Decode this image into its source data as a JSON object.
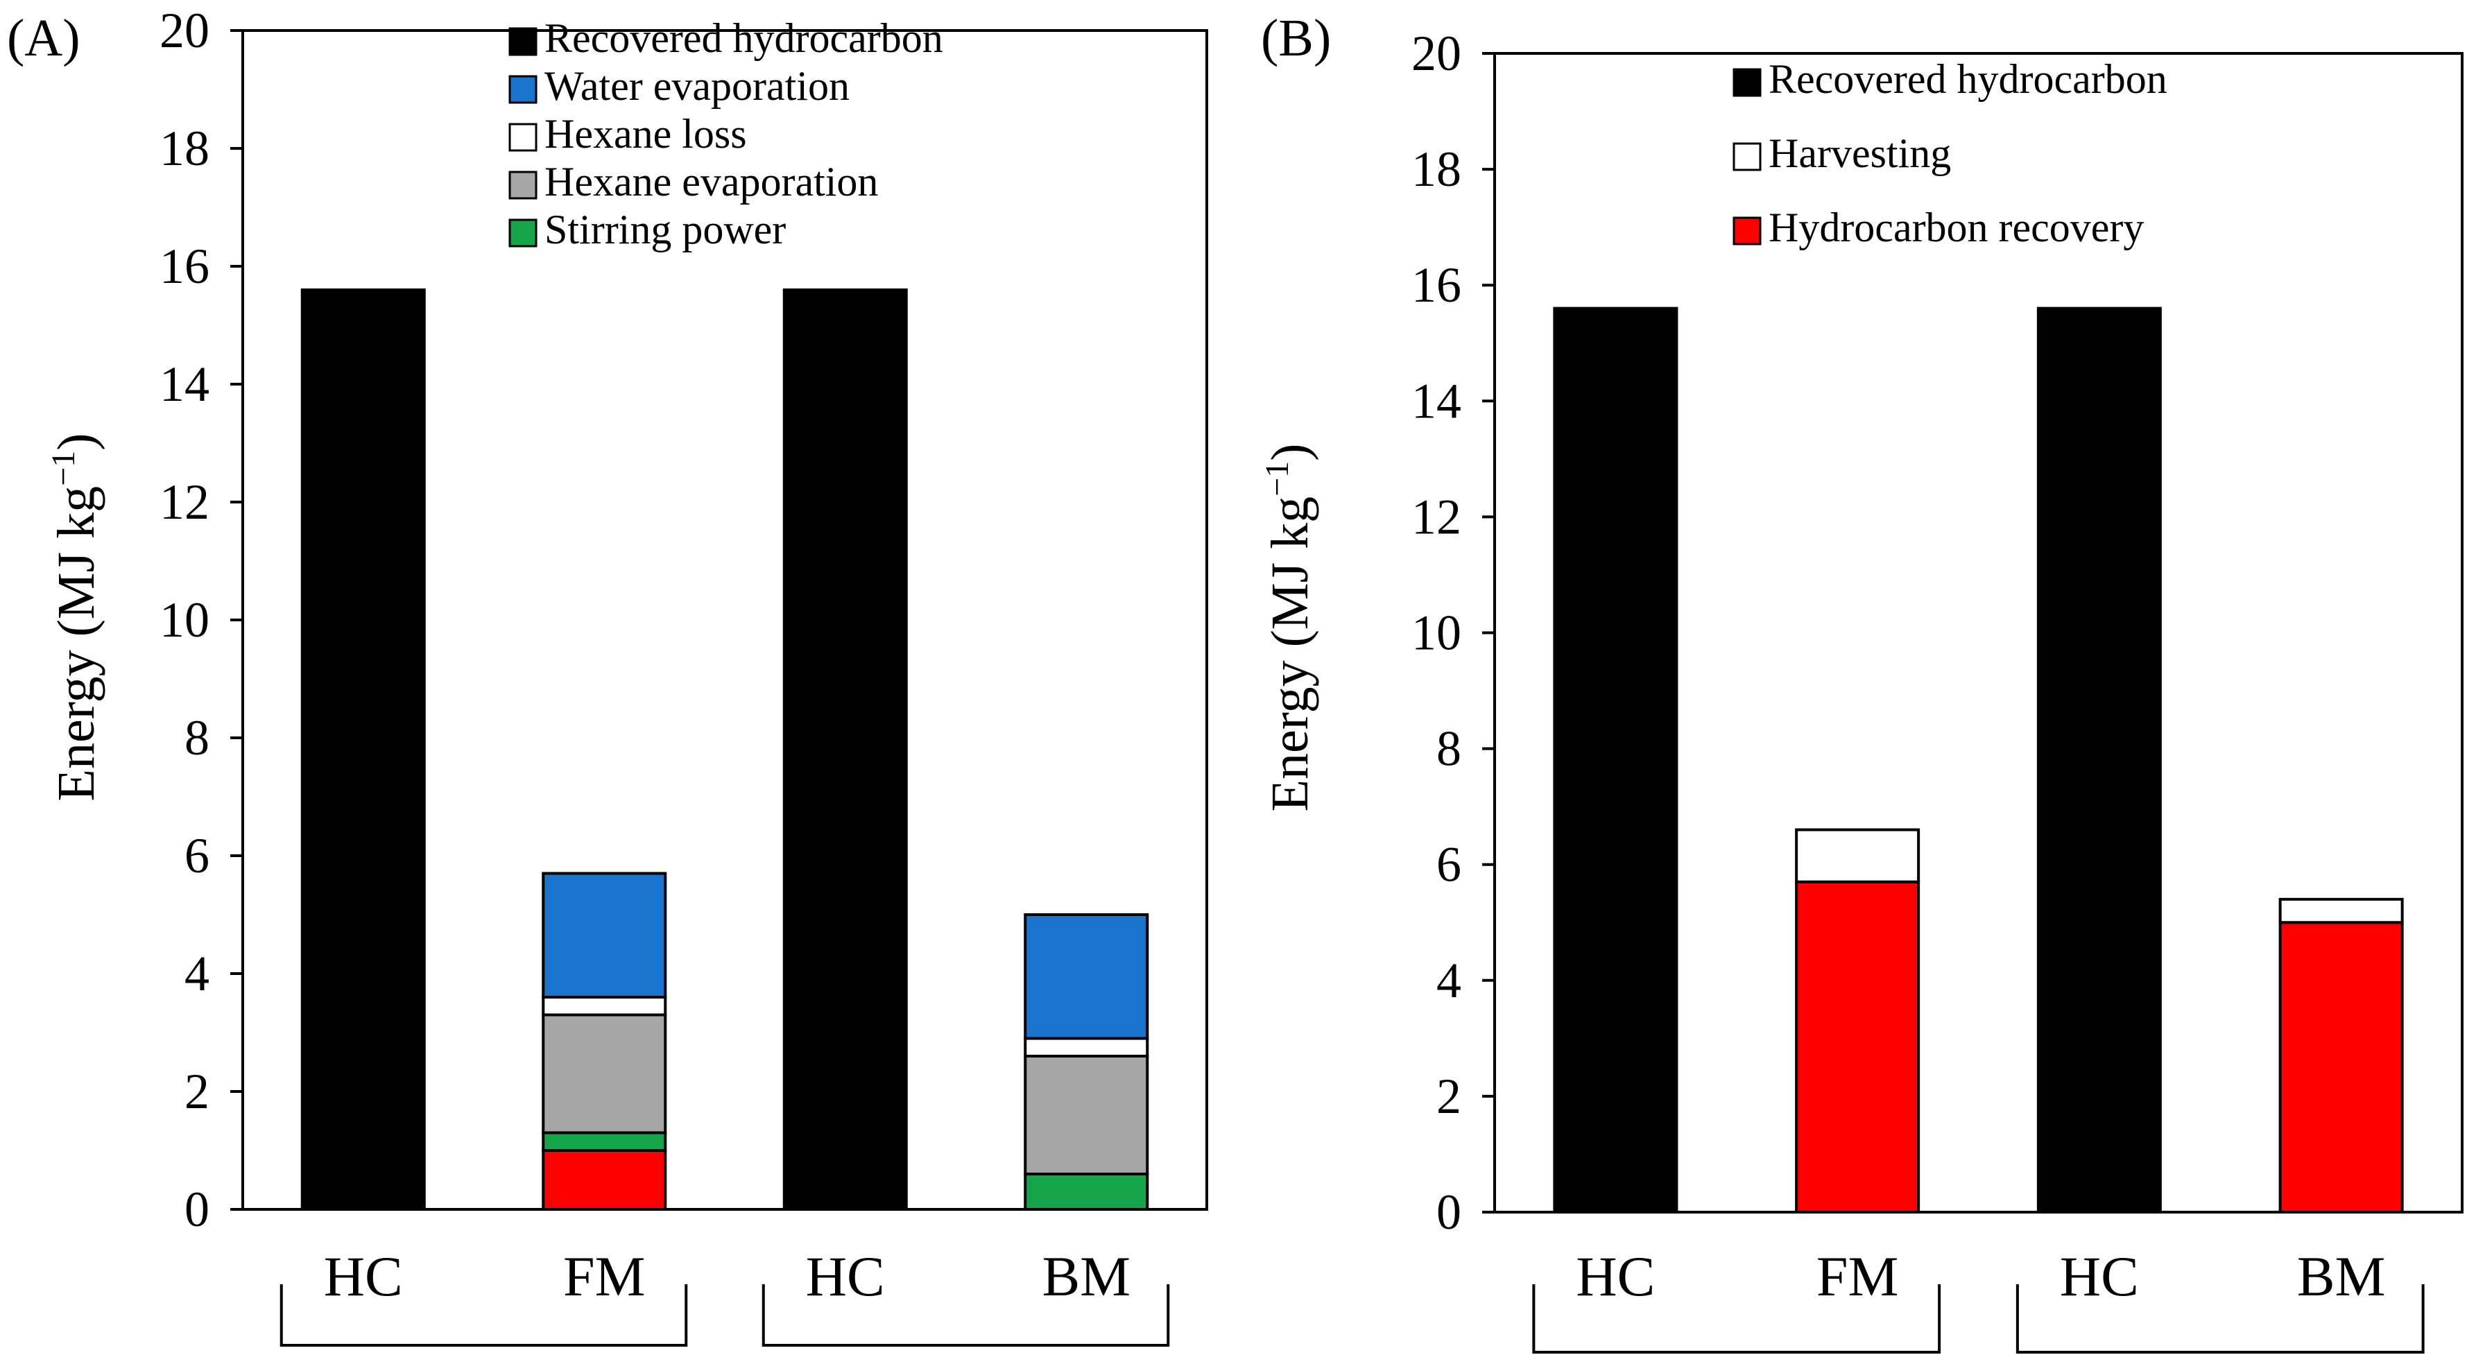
{
  "colors": {
    "recovered_hydrocarbon": "#000000",
    "water_evaporation": "#1874CD",
    "hexane_loss": "#FFFFFF",
    "hexane_evaporation": "#A6A6A6",
    "stirring_power": "#14A54A",
    "harvesting": "#FFFFFF",
    "hydrocarbon_recovery": "#FF0000"
  },
  "chart_data": [
    {
      "panel": "(A)",
      "type": "bar",
      "stacked": true,
      "categories": [
        "HC",
        "FM",
        "HC",
        "BM"
      ],
      "ylabel": "Energy (MJ kg⁻¹)",
      "ylabel_main": "Energy (MJ kg",
      "ylabel_sup": "−1",
      "ylabel_close": ")",
      "ylim": [
        0,
        20
      ],
      "yticks": [
        0,
        2,
        4,
        6,
        8,
        10,
        12,
        14,
        16,
        18,
        20
      ],
      "legend_position": "top-center",
      "series": [
        {
          "key": "hydrocarbon_recovery",
          "name": "Hydrocarbon recovery",
          "in_legend": false,
          "values": [
            0,
            1.0,
            0,
            0
          ]
        },
        {
          "key": "stirring_power",
          "name": "Stirring power",
          "in_legend": true,
          "values": [
            0,
            0.3,
            0,
            0.6
          ]
        },
        {
          "key": "hexane_evaporation",
          "name": "Hexane evaporation",
          "in_legend": true,
          "values": [
            0,
            2.0,
            0,
            2.0
          ]
        },
        {
          "key": "hexane_loss",
          "name": "Hexane loss",
          "in_legend": true,
          "values": [
            0,
            0.3,
            0,
            0.3
          ]
        },
        {
          "key": "water_evaporation",
          "name": "Water evaporation",
          "in_legend": true,
          "values": [
            0,
            2.1,
            0,
            2.1
          ]
        },
        {
          "key": "recovered_hydrocarbon",
          "name": "Recovered hydrocarbon",
          "in_legend": true,
          "values": [
            15.6,
            0,
            15.6,
            0
          ]
        }
      ],
      "legend_order": [
        "recovered_hydrocarbon",
        "water_evaporation",
        "hexane_loss",
        "hexane_evaporation",
        "stirring_power"
      ],
      "groups": [
        [
          0,
          1
        ],
        [
          2,
          3
        ]
      ]
    },
    {
      "panel": "(B)",
      "type": "bar",
      "stacked": true,
      "categories": [
        "HC",
        "FM",
        "HC",
        "BM"
      ],
      "ylabel": "Energy (MJ kg⁻¹)",
      "ylabel_main": "Energy (MJ kg",
      "ylabel_sup": "−1",
      "ylabel_close": ")",
      "ylim": [
        0,
        20
      ],
      "yticks": [
        0,
        2,
        4,
        6,
        8,
        10,
        12,
        14,
        16,
        18,
        20
      ],
      "legend_position": "top-center",
      "series": [
        {
          "key": "hydrocarbon_recovery",
          "name": "Hydrocarbon recovery",
          "in_legend": true,
          "values": [
            0,
            5.7,
            0,
            5.0
          ]
        },
        {
          "key": "harvesting",
          "name": "Harvesting",
          "in_legend": true,
          "values": [
            0,
            0.9,
            0,
            0.4
          ]
        },
        {
          "key": "recovered_hydrocarbon",
          "name": "Recovered hydrocarbon",
          "in_legend": true,
          "values": [
            15.6,
            0,
            15.6,
            0
          ]
        }
      ],
      "legend_order": [
        "recovered_hydrocarbon",
        "harvesting",
        "hydrocarbon_recovery"
      ],
      "groups": [
        [
          0,
          1
        ],
        [
          2,
          3
        ]
      ]
    }
  ]
}
